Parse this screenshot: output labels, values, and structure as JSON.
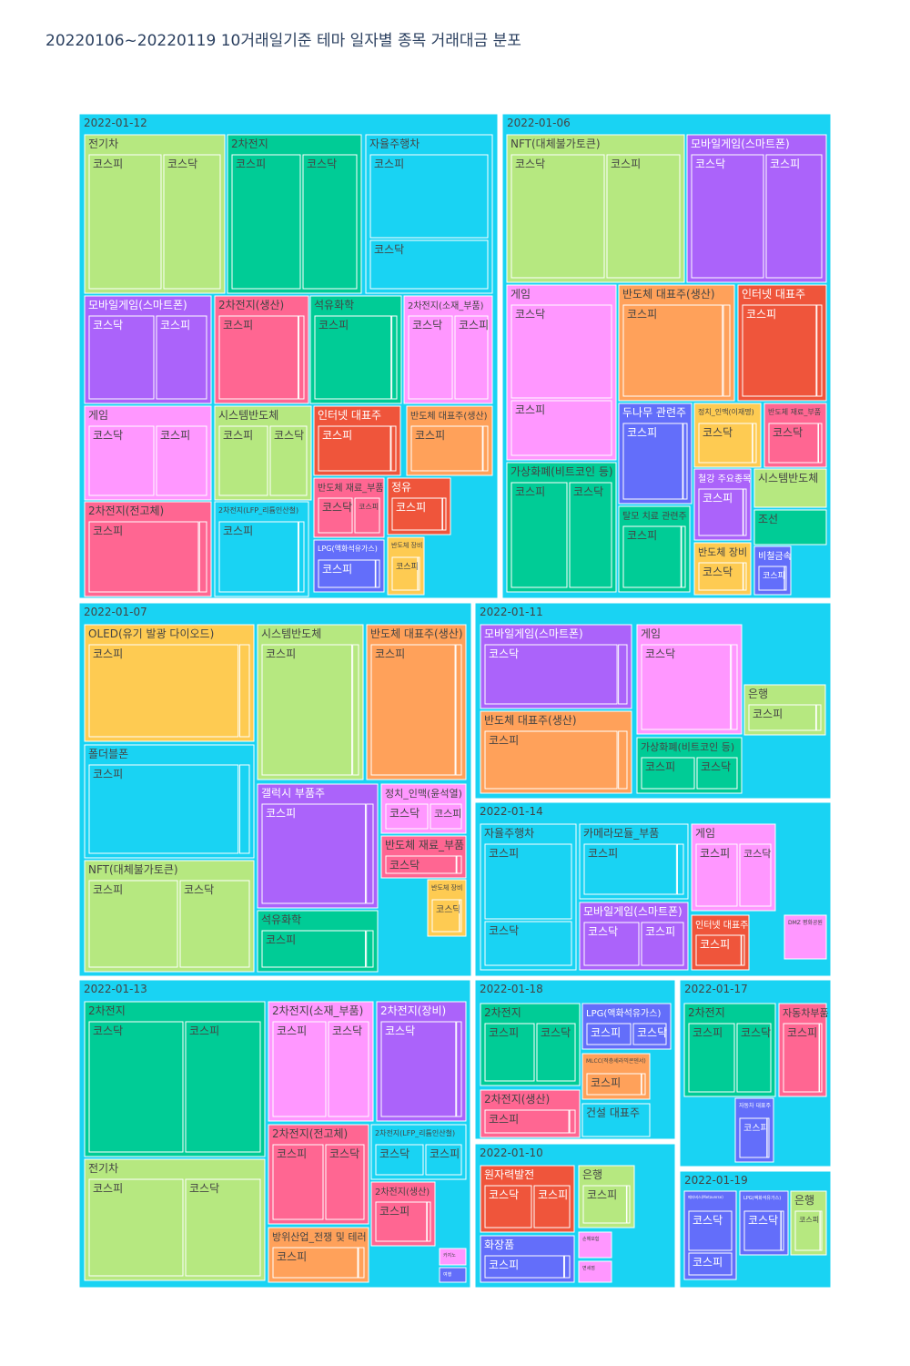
{
  "chart_data": {
    "type": "treemap",
    "title": "20220106~20220119 10거래일기준 테마 일자별 종목 거래대금 분포",
    "root_color": "#19d3f3",
    "dates": [
      {
        "label": "2022-01-12",
        "themes": [
          {
            "name": "전기차",
            "color": "#b6e880",
            "markets": [
              "코스피",
              "코스닥"
            ]
          },
          {
            "name": "2차전지",
            "color": "#00cc96",
            "markets": [
              "코스피",
              "코스닥"
            ]
          },
          {
            "name": "자율주행차",
            "color": "#19d3f3",
            "markets": [
              "코스피",
              "코스닥"
            ]
          },
          {
            "name": "모바일게임(스마트폰)",
            "color": "#ab63fa",
            "markets": [
              "코스닥",
              "코스피"
            ]
          },
          {
            "name": "2차전지(생산)",
            "color": "#ff6692",
            "markets": [
              "코스피"
            ]
          },
          {
            "name": "석유화학",
            "color": "#00cc96",
            "markets": [
              "코스피"
            ]
          },
          {
            "name": "2차전지(소재_부품)",
            "color": "#ff97ff",
            "markets": [
              "코스닥",
              "코스피"
            ]
          },
          {
            "name": "게임",
            "color": "#ff97ff",
            "markets": [
              "코스닥",
              "코스피"
            ]
          },
          {
            "name": "시스템반도체",
            "color": "#b6e880",
            "markets": [
              "코스피",
              "코스닥"
            ]
          },
          {
            "name": "인터넷 대표주",
            "color": "#ef553b",
            "markets": [
              "코스피"
            ]
          },
          {
            "name": "반도체 대표주(생산)",
            "color": "#ffa15a",
            "markets": [
              "코스피"
            ]
          },
          {
            "name": "2차전지(전고체)",
            "color": "#ff6692",
            "markets": [
              "코스피"
            ]
          },
          {
            "name": "2차전지(LFP_리튬인산철)",
            "color": "#19d3f3",
            "markets": [
              "코스피"
            ]
          },
          {
            "name": "반도체 재료_부품",
            "color": "#ff6692",
            "markets": [
              "코스닥",
              "코스피"
            ]
          },
          {
            "name": "정유",
            "color": "#ef553b",
            "markets": [
              "코스피"
            ]
          },
          {
            "name": "LPG(액화석유가스)",
            "color": "#636efa",
            "markets": [
              "코스피"
            ]
          },
          {
            "name": "반도체 장비",
            "color": "#fecb52",
            "markets": [
              "코스피"
            ]
          }
        ]
      },
      {
        "label": "2022-01-06",
        "themes": [
          {
            "name": "NFT(대체불가토큰)",
            "color": "#b6e880",
            "markets": [
              "코스닥",
              "코스피"
            ]
          },
          {
            "name": "모바일게임(스마트폰)",
            "color": "#ab63fa",
            "markets": [
              "코스닥",
              "코스피"
            ]
          },
          {
            "name": "게임",
            "color": "#ff97ff",
            "markets": [
              "코스닥",
              "코스피"
            ]
          },
          {
            "name": "반도체 대표주(생산)",
            "color": "#ffa15a",
            "markets": [
              "코스피"
            ]
          },
          {
            "name": "인터넷 대표주",
            "color": "#ef553b",
            "markets": [
              "코스피"
            ]
          },
          {
            "name": "두나무 관련주",
            "color": "#636efa",
            "markets": [
              "코스피"
            ]
          },
          {
            "name": "정치_인맥(이재명)",
            "color": "#fecb52",
            "markets": [
              "코스닥"
            ]
          },
          {
            "name": "반도체 재료_부품",
            "color": "#ff6692",
            "markets": [
              "코스닥"
            ]
          },
          {
            "name": "가상화폐(비트코인 등)",
            "color": "#00cc96",
            "markets": [
              "코스피",
              "코스닥"
            ]
          },
          {
            "name": "탈모 치료 관련주",
            "color": "#00cc96",
            "markets": [
              "코스피"
            ]
          },
          {
            "name": "철강 주요종목",
            "color": "#ab63fa",
            "markets": [
              "코스피"
            ]
          },
          {
            "name": "시스템반도체",
            "color": "#b6e880",
            "markets": []
          },
          {
            "name": "조선",
            "color": "#00cc96",
            "markets": []
          },
          {
            "name": "반도체 장비",
            "color": "#fecb52",
            "markets": [
              "코스닥"
            ]
          },
          {
            "name": "비철금속",
            "color": "#636efa",
            "markets": [
              "코스피"
            ]
          }
        ]
      },
      {
        "label": "2022-01-07",
        "themes": [
          {
            "name": "OLED(유기 발광 다이오드)",
            "color": "#fecb52",
            "markets": [
              "코스피"
            ]
          },
          {
            "name": "시스템반도체",
            "color": "#b6e880",
            "markets": [
              "코스피"
            ]
          },
          {
            "name": "반도체 대표주(생산)",
            "color": "#ffa15a",
            "markets": [
              "코스피"
            ]
          },
          {
            "name": "폴더블폰",
            "color": "#19d3f3",
            "markets": [
              "코스피"
            ]
          },
          {
            "name": "갤럭시 부품주",
            "color": "#ab63fa",
            "markets": [
              "코스피"
            ]
          },
          {
            "name": "정치_인맥(윤석열)",
            "color": "#ff97ff",
            "markets": [
              "코스닥",
              "코스피"
            ]
          },
          {
            "name": "반도체 재료_부품",
            "color": "#ff6692",
            "markets": [
              "코스닥"
            ]
          },
          {
            "name": "NFT(대체불가토큰)",
            "color": "#b6e880",
            "markets": [
              "코스피",
              "코스닥"
            ]
          },
          {
            "name": "석유화학",
            "color": "#00cc96",
            "markets": [
              "코스피"
            ]
          },
          {
            "name": "반도체 장비",
            "color": "#fecb52",
            "markets": [
              "코스닥"
            ]
          }
        ]
      },
      {
        "label": "2022-01-11",
        "themes": [
          {
            "name": "모바일게임(스마트폰)",
            "color": "#ab63fa",
            "markets": [
              "코스닥"
            ]
          },
          {
            "name": "게임",
            "color": "#ff97ff",
            "markets": [
              "코스닥"
            ]
          },
          {
            "name": "반도체 대표주(생산)",
            "color": "#ffa15a",
            "markets": [
              "코스피"
            ]
          },
          {
            "name": "은행",
            "color": "#b6e880",
            "markets": [
              "코스피"
            ]
          },
          {
            "name": "가상화폐(비트코인 등)",
            "color": "#00cc96",
            "markets": [
              "코스피",
              "코스닥"
            ]
          }
        ]
      },
      {
        "label": "2022-01-14",
        "themes": [
          {
            "name": "자율주행차",
            "color": "#19d3f3",
            "markets": [
              "코스피",
              "코스닥"
            ]
          },
          {
            "name": "카메라모듈_부품",
            "color": "#19d3f3",
            "markets": [
              "코스피"
            ]
          },
          {
            "name": "게임",
            "color": "#ff97ff",
            "markets": [
              "코스피",
              "코스닥"
            ]
          },
          {
            "name": "모바일게임(스마트폰)",
            "color": "#ab63fa",
            "markets": [
              "코스닥",
              "코스피"
            ]
          },
          {
            "name": "인터넷 대표주",
            "color": "#ef553b",
            "markets": [
              "코스피"
            ]
          },
          {
            "name": "DMZ 평화공원",
            "color": "#ff97ff",
            "markets": []
          }
        ]
      },
      {
        "label": "2022-01-13",
        "themes": [
          {
            "name": "2차전지",
            "color": "#00cc96",
            "markets": [
              "코스닥",
              "코스피"
            ]
          },
          {
            "name": "2차전지(소재_부품)",
            "color": "#ff97ff",
            "markets": [
              "코스피",
              "코스닥"
            ]
          },
          {
            "name": "2차전지(장비)",
            "color": "#ab63fa",
            "markets": [
              "코스닥"
            ]
          },
          {
            "name": "전기차",
            "color": "#b6e880",
            "markets": [
              "코스피",
              "코스닥"
            ]
          },
          {
            "name": "2차전지(전고체)",
            "color": "#ff6692",
            "markets": [
              "코스피",
              "코스닥"
            ]
          },
          {
            "name": "2차전지(LFP_리튬인산철)",
            "color": "#19d3f3",
            "markets": [
              "코스닥",
              "코스피"
            ]
          },
          {
            "name": "2차전지(생산)",
            "color": "#ff6692",
            "markets": [
              "코스피"
            ]
          },
          {
            "name": "방위산업_전쟁 및 테러",
            "color": "#ffa15a",
            "markets": [
              "코스피"
            ]
          },
          {
            "name": "카지노",
            "color": "#ff97ff",
            "markets": []
          },
          {
            "name": "여행",
            "color": "#636efa",
            "markets": []
          }
        ]
      },
      {
        "label": "2022-01-18",
        "themes": [
          {
            "name": "2차전지",
            "color": "#00cc96",
            "markets": [
              "코스피",
              "코스닥"
            ]
          },
          {
            "name": "LPG(액화석유가스)",
            "color": "#636efa",
            "markets": [
              "코스피",
              "코스닥"
            ]
          },
          {
            "name": "2차전지(생산)",
            "color": "#ff6692",
            "markets": [
              "코스피"
            ]
          },
          {
            "name": "MLCC(적층세라믹콘덴서)",
            "color": "#ffa15a",
            "markets": [
              "코스피"
            ]
          },
          {
            "name": "건설 대표주",
            "color": "#19d3f3",
            "markets": []
          }
        ]
      },
      {
        "label": "2022-01-17",
        "themes": [
          {
            "name": "2차전지",
            "color": "#00cc96",
            "markets": [
              "코스피",
              "코스닥"
            ]
          },
          {
            "name": "자동차부품",
            "color": "#ff6692",
            "markets": [
              "코스피"
            ]
          },
          {
            "name": "자동차 대표주",
            "color": "#636efa",
            "markets": [
              "코스피"
            ]
          }
        ]
      },
      {
        "label": "2022-01-10",
        "themes": [
          {
            "name": "원자력발전",
            "color": "#ef553b",
            "markets": [
              "코스닥",
              "코스피"
            ]
          },
          {
            "name": "은행",
            "color": "#b6e880",
            "markets": [
              "코스피"
            ]
          },
          {
            "name": "화장품",
            "color": "#636efa",
            "markets": [
              "코스피"
            ]
          },
          {
            "name": "손해보험",
            "color": "#ff97ff",
            "markets": []
          },
          {
            "name": "면세점",
            "color": "#ff97ff",
            "markets": []
          }
        ]
      },
      {
        "label": "2022-01-19",
        "themes": [
          {
            "name": "메타버스(Metaverse)",
            "color": "#636efa",
            "markets": [
              "코스닥",
              "코스피"
            ]
          },
          {
            "name": "LPG(액화석유가스)",
            "color": "#636efa",
            "markets": [
              "코스닥"
            ]
          },
          {
            "name": "은행",
            "color": "#b6e880",
            "markets": [
              "코스피"
            ]
          }
        ]
      }
    ]
  }
}
